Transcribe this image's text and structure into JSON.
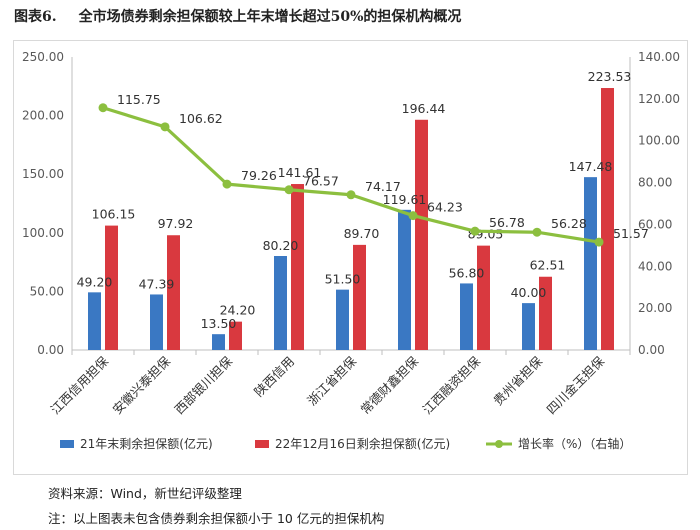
{
  "figure": {
    "label": "图表6.",
    "title": "全市场债券剩余担保额较上年末增长超过50%的担保机构概况"
  },
  "chart_data": {
    "type": "bar",
    "categories": [
      "江西信用担保",
      "安徽兴泰担保",
      "西部银川担保",
      "陕西信用",
      "浙江省担保",
      "常德财鑫担保",
      "江西融资担保",
      "贵州省担保",
      "四川金玉担保"
    ],
    "series": [
      {
        "name": "21年末剩余担保额(亿元)",
        "type": "bar",
        "axis": "left",
        "color": "#3a78c3",
        "values": [
          49.2,
          47.39,
          13.5,
          80.2,
          51.5,
          119.61,
          56.8,
          40.0,
          147.48
        ],
        "labels": [
          "49.20",
          "47.39",
          "13.50",
          "80.20",
          "51.50",
          "119.61",
          "56.80",
          "40.00",
          "147.48"
        ]
      },
      {
        "name": "22年12月16日剩余担保额(亿元)",
        "type": "bar",
        "axis": "left",
        "color": "#d9393f",
        "values": [
          106.15,
          97.92,
          24.2,
          141.61,
          89.7,
          196.44,
          89.05,
          62.51,
          223.53
        ],
        "labels": [
          "106.15",
          "97.92",
          "24.20",
          "141.61",
          "89.70",
          "196.44",
          "89.05",
          "62.51",
          "223.53"
        ]
      },
      {
        "name": "增长率（%）（右轴）",
        "type": "line",
        "axis": "right",
        "color": "#8cbf3f",
        "values": [
          115.75,
          106.62,
          79.26,
          76.57,
          74.17,
          64.23,
          56.78,
          56.28,
          51.57
        ],
        "labels": [
          "115.75",
          "106.62",
          "79.26",
          "76.57",
          "74.17",
          "64.23",
          "56.78",
          "56.28",
          "51.57"
        ]
      }
    ],
    "y_left": {
      "min": 0,
      "max": 250,
      "ticks": [
        "0.00",
        "50.00",
        "100.00",
        "150.00",
        "200.00",
        "250.00"
      ]
    },
    "y_right": {
      "min": 0,
      "max": 140,
      "ticks": [
        "0.00",
        "20.00",
        "40.00",
        "60.00",
        "80.00",
        "100.00",
        "120.00",
        "140.00"
      ]
    },
    "grid": false,
    "legend_position": "bottom"
  },
  "notes": {
    "source": "资料来源：Wind，新世纪评级整理",
    "remark": "注：以上图表未包含债券剩余担保额小于 10 亿元的担保机构"
  }
}
